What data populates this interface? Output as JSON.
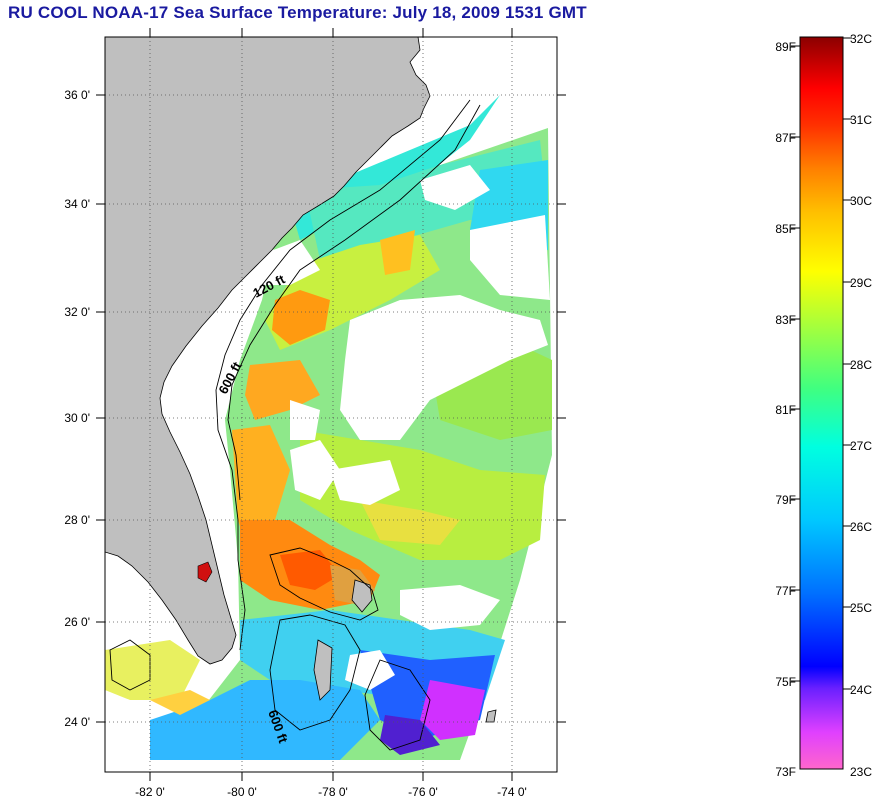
{
  "title": "RU COOL  NOAA-17  Sea Surface Temperature:  July 18, 2009 1531 GMT",
  "map": {
    "lat_ticks": [
      "36 0'",
      "34 0'",
      "32 0'",
      "30 0'",
      "28 0'",
      "26 0'",
      "24 0'"
    ],
    "lon_ticks": [
      "-82 0'",
      "-80 0'",
      "-78 0'",
      "-76 0'",
      "-74 0'"
    ],
    "contours": [
      "120 ft",
      "600 ft",
      "600 ft"
    ],
    "land_color": "#bfbfbf",
    "grid": "dotted"
  },
  "colorbar": {
    "fahrenheit": [
      "89F",
      "87F",
      "85F",
      "83F",
      "81F",
      "79F",
      "77F",
      "75F",
      "73F"
    ],
    "celsius": [
      "32C",
      "31C",
      "30C",
      "29C",
      "28C",
      "27C",
      "26C",
      "25C",
      "24C",
      "23C"
    ],
    "range_c": [
      23,
      32
    ]
  }
}
